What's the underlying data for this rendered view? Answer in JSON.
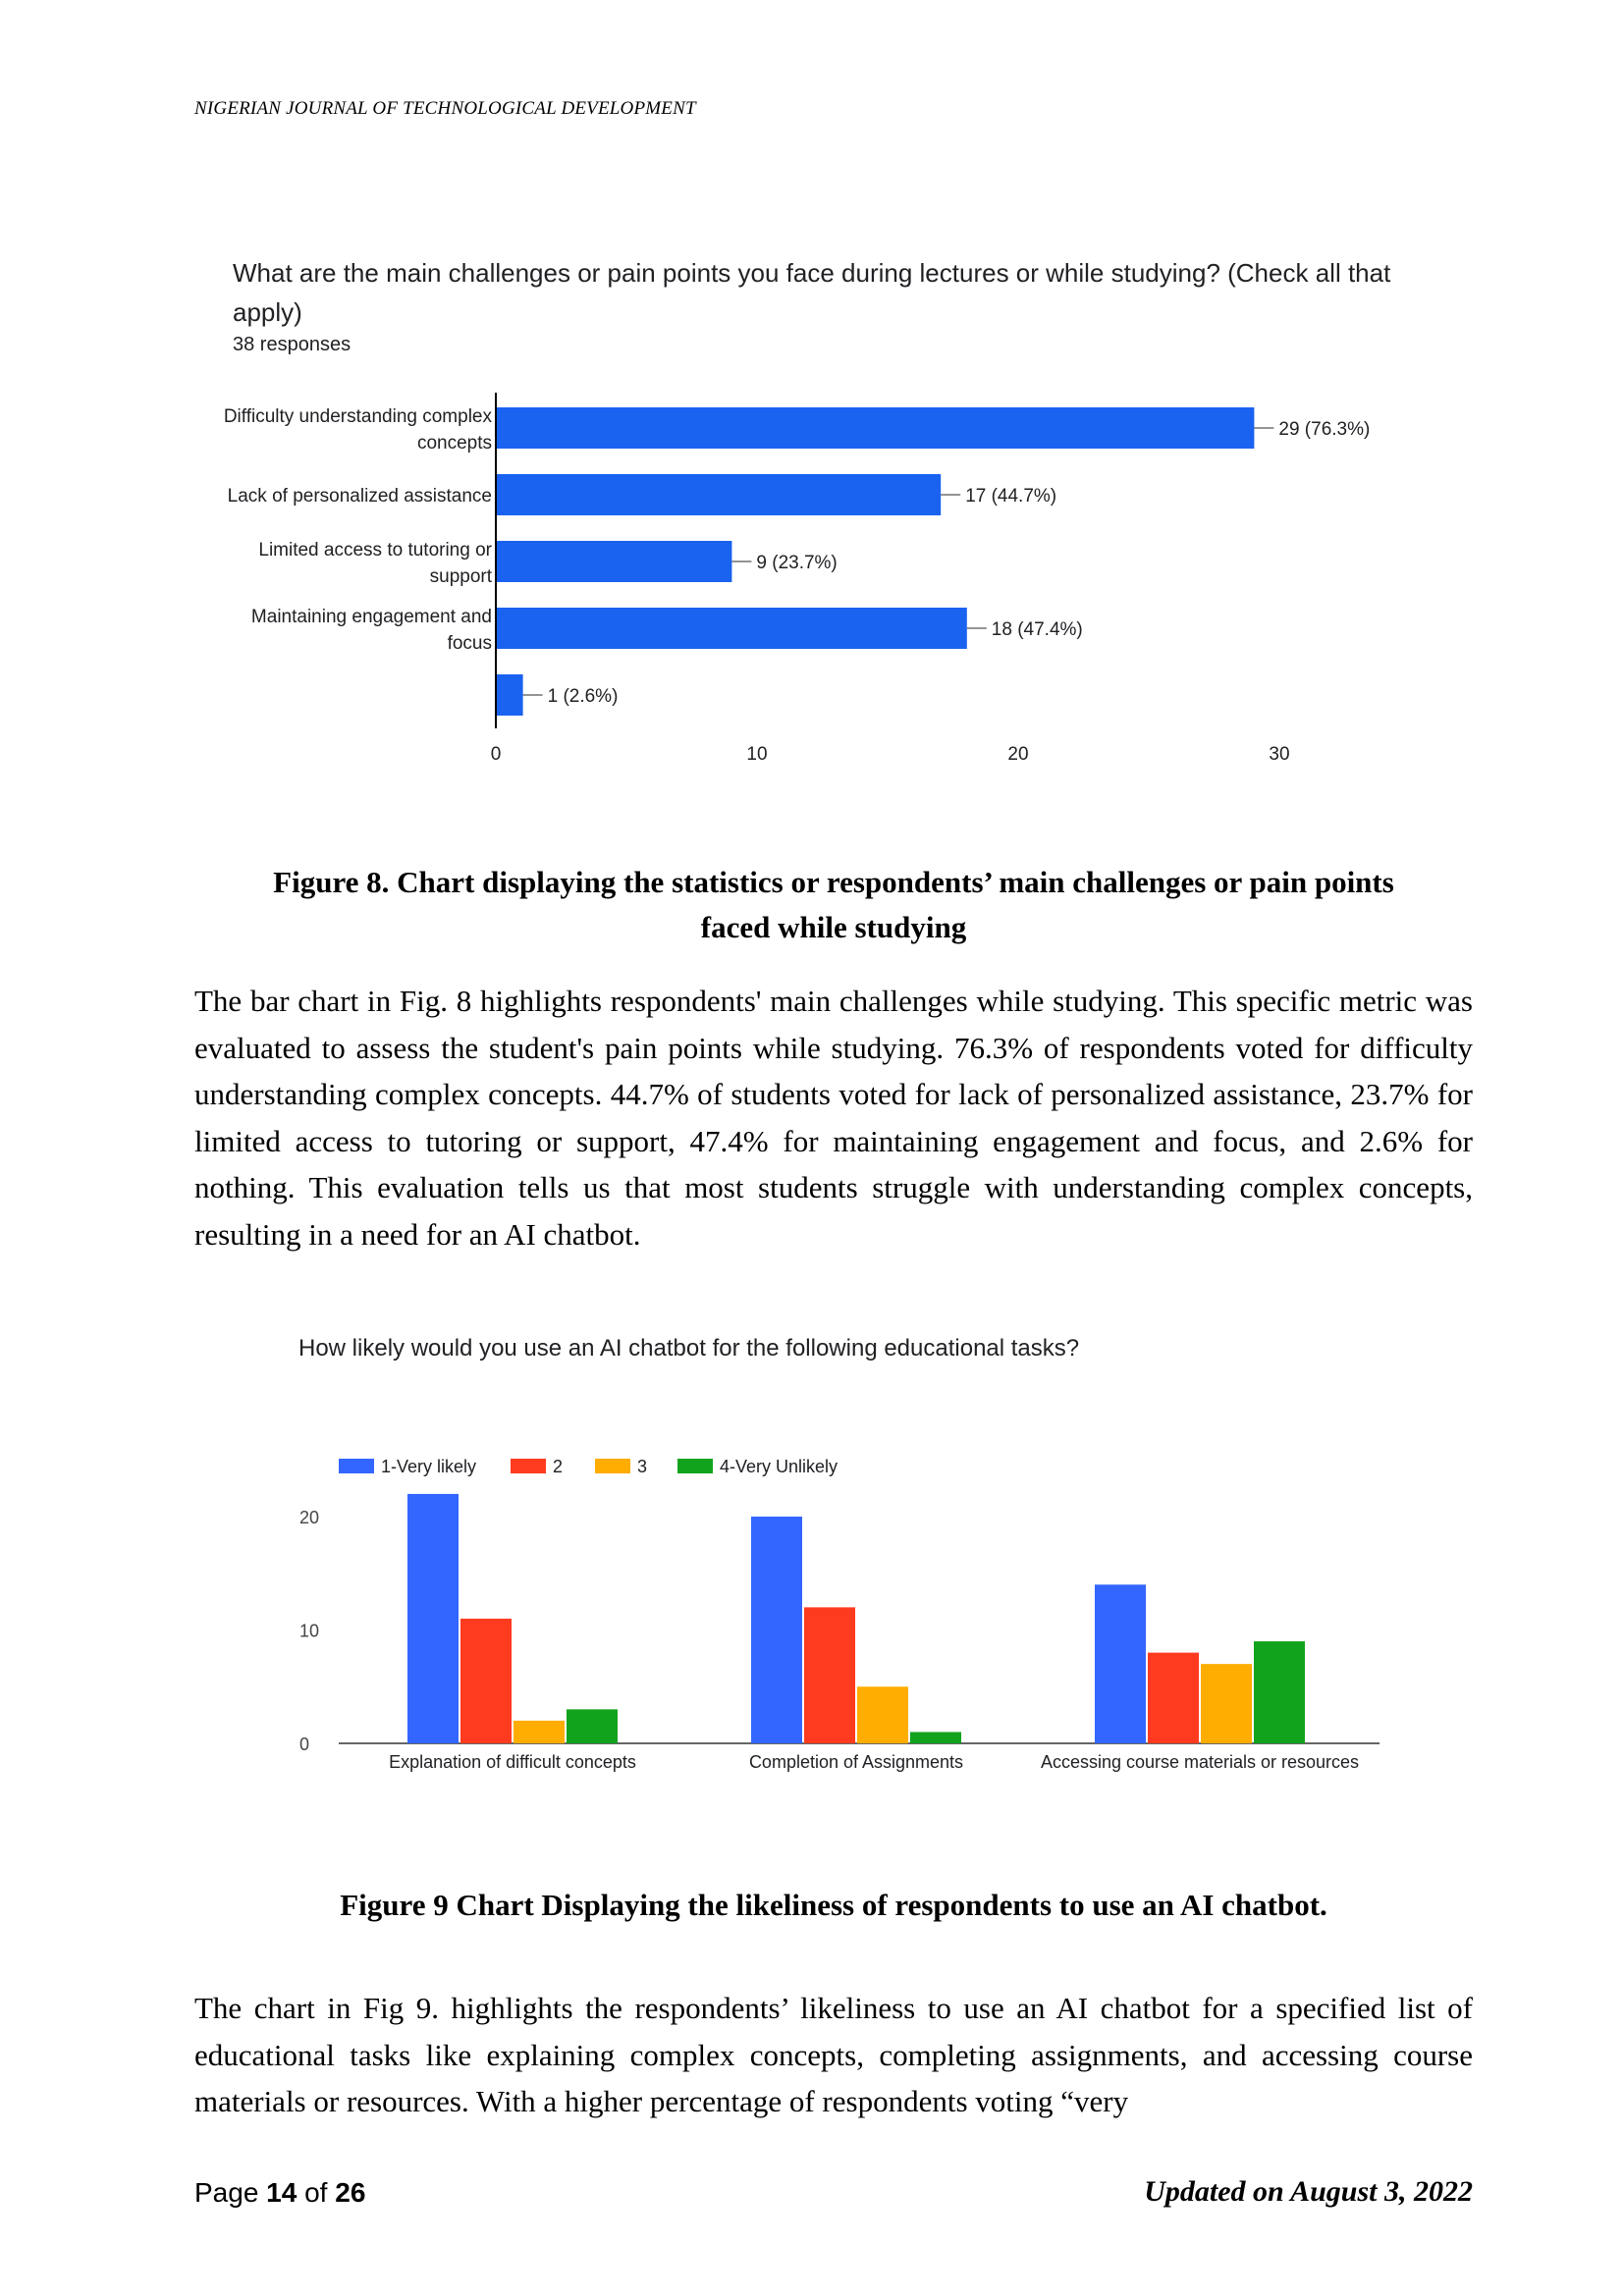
{
  "header": {
    "journal": "NIGERIAN JOURNAL OF TECHNOLOGICAL DEVELOPMENT"
  },
  "figure8": {
    "title": "What are the main challenges or pain points you face during lectures or while studying? (Check all that apply)",
    "responses": "38 responses",
    "caption_line1": "Figure 8. Chart displaying the statistics or respondents’  main challenges or pain points",
    "caption_line2": "faced while studying"
  },
  "paragraph1": "The bar chart in Fig. 8 highlights respondents' main challenges while studying. This specific metric was evaluated to assess the student's pain points while studying. 76.3% of respondents voted for difficulty understanding complex concepts. 44.7% of students voted for lack of per­sonalized assistance, 23.7% for limited access to tutoring or support, 47.4% for maintaining engagement and focus, and 2.6% for nothing. This evaluation tells us that most students strug­gle with understanding complex concepts, resulting in a need for an AI chatbot.",
  "figure9": {
    "title": "How likely would you use an AI chatbot for the following educational tasks?",
    "caption": "Figure 9 Chart Displaying the likeliness of respondents to use an AI chatbot."
  },
  "paragraph2": "The chart in Fig 9. highlights the respondents’ likeliness to use an AI chatbot for a specified list of educational tasks like explaining complex concepts, completing assignments, and ac­cessing course materials or resources. With a higher percentage of respondents voting “very",
  "footer": {
    "page_prefix": "Page ",
    "page_num": "14",
    "page_of": " of ",
    "page_total": "26",
    "updated": "Updated on August 3, 2022"
  },
  "chart_data": [
    {
      "type": "bar",
      "orientation": "horizontal",
      "title": "What are the main challenges or pain points you face during lectures or while studying? (Check all that apply)",
      "categories": [
        [
          "Difficulty understanding complex",
          "concepts"
        ],
        [
          "Lack of personalized assistance"
        ],
        [
          "Limited access to tutoring or",
          "support"
        ],
        [
          "Maintaining engagement and",
          "focus"
        ],
        [
          ""
        ]
      ],
      "values": [
        29,
        17,
        9,
        18,
        1
      ],
      "data_labels": [
        "29 (76.3%)",
        "17 (44.7%)",
        "9 (23.7%)",
        "18 (47.4%)",
        "1 (2.6%)"
      ],
      "xlim": [
        0,
        30
      ],
      "xticks": [
        0,
        10,
        20,
        30
      ],
      "color": "#1a62f0"
    },
    {
      "type": "bar",
      "orientation": "vertical",
      "title": "How likely would you use an AI chatbot for the following educational tasks?",
      "categories": [
        "Explanation of difficult concepts",
        "Completion of Assignments",
        "Accessing course materials or resources"
      ],
      "series": [
        {
          "name": "1-Very likely",
          "color": "#3366ff",
          "values": [
            22,
            20,
            14
          ]
        },
        {
          "name": "2",
          "color": "#ff3b1f",
          "values": [
            11,
            12,
            8
          ]
        },
        {
          "name": "3",
          "color": "#ffad00",
          "values": [
            2,
            5,
            7
          ]
        },
        {
          "name": "4-Very Unlikely",
          "color": "#12a31d",
          "values": [
            3,
            1,
            9
          ]
        }
      ],
      "ylim": [
        0,
        20
      ],
      "yticks": [
        0,
        10,
        20
      ],
      "legend": "top-left"
    }
  ]
}
